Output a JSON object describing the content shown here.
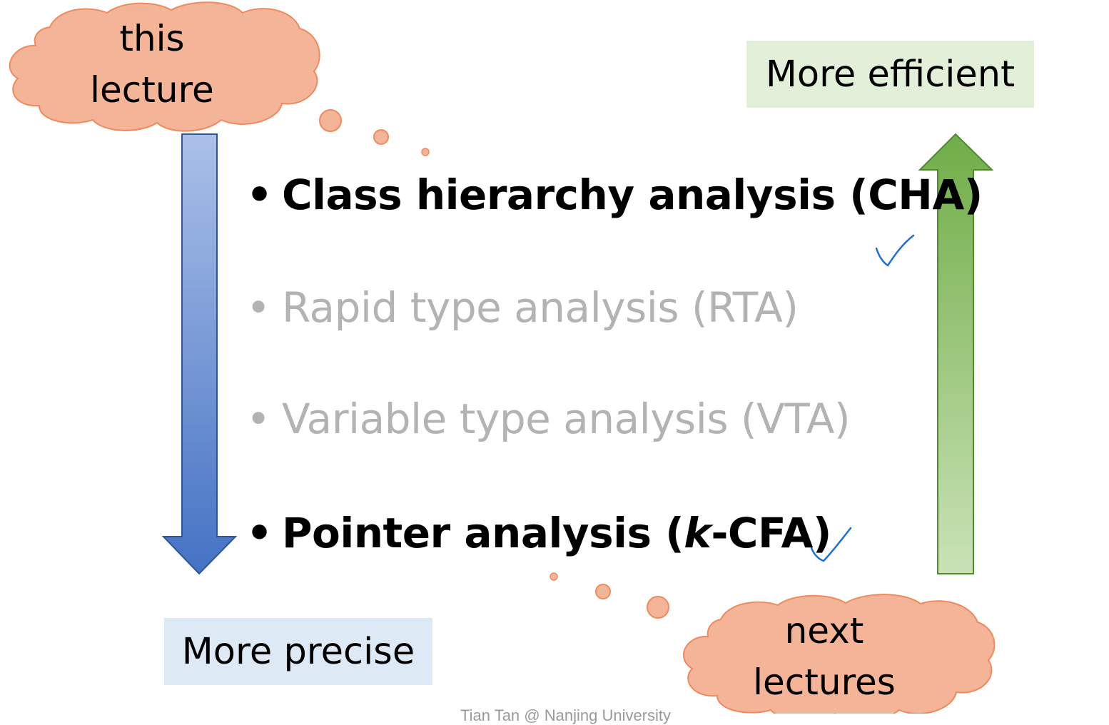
{
  "slide": {
    "bullets": [
      {
        "marker": "•",
        "text": "Class hierarchy analysis (CHA)",
        "emphasis": "bold",
        "checked": true
      },
      {
        "marker": "•",
        "text": "Rapid type analysis (RTA)",
        "emphasis": "muted",
        "checked": false
      },
      {
        "marker": "•",
        "text": "Variable type analysis (VTA)",
        "emphasis": "muted",
        "checked": false
      },
      {
        "marker": "•",
        "text_prefix": "Pointer analysis (",
        "text_italic": "k",
        "text_suffix": "-CFA)",
        "emphasis": "bold",
        "checked": true
      }
    ],
    "cloud_top": {
      "line1": "this",
      "line2": "lecture"
    },
    "cloud_bottom": {
      "line1": "next",
      "line2": "lectures"
    },
    "label_precise": "More precise",
    "label_efficient": "More efficient",
    "footer": "Tian Tan @ Nanjing University"
  },
  "colors": {
    "cloud_fill": "#f4b498",
    "cloud_stroke": "#ee8b5c",
    "arrow_blue_top": "#abc0e8",
    "arrow_blue_bottom": "#4472c4",
    "arrow_green_top": "#70ad47",
    "arrow_green_bottom": "#c9e2b6",
    "box_blue": "#dee9f6",
    "box_green": "#e2efd9",
    "muted_text": "#b3b3b3",
    "check_ink": "#1f6fd6"
  },
  "icons": [
    "check-mark-icon",
    "thought-cloud-icon",
    "down-arrow-icon",
    "up-arrow-icon"
  ]
}
